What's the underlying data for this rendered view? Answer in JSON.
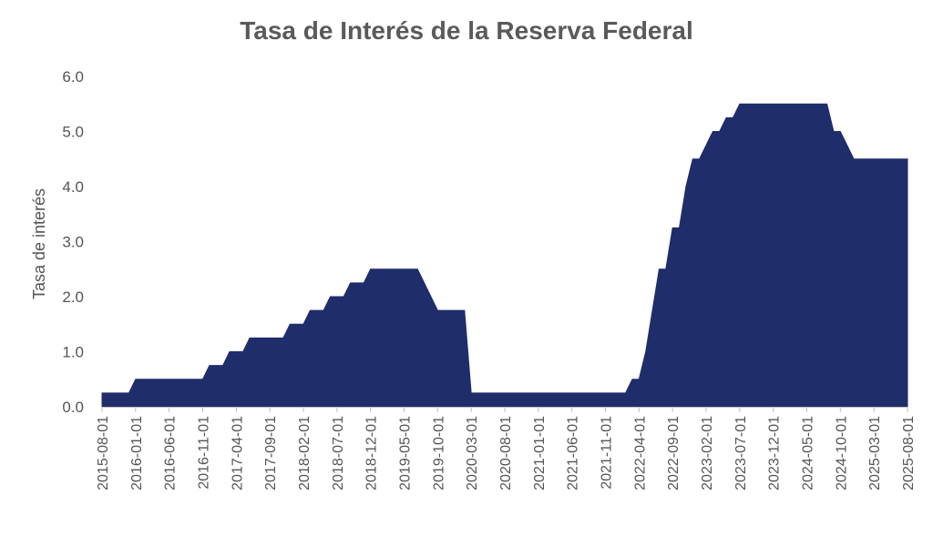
{
  "chart_data": {
    "type": "area",
    "title": "Tasa de Interés de la Reserva Federal",
    "xlabel": "",
    "ylabel": "Tasa de interés",
    "ylim": [
      0,
      6
    ],
    "yticks": [
      "0.0",
      "1.0",
      "2.0",
      "3.0",
      "4.0",
      "5.0",
      "6.0"
    ],
    "xtick_labels": [
      "2015-08-01",
      "2016-01-01",
      "2016-06-01",
      "2016-11-01",
      "2017-04-01",
      "2017-09-01",
      "2018-02-01",
      "2018-07-01",
      "2018-12-01",
      "2019-05-01",
      "2019-10-01",
      "2020-03-01",
      "2020-08-01",
      "2021-01-01",
      "2021-06-01",
      "2021-11-01",
      "2022-04-01",
      "2022-09-01",
      "2023-02-01",
      "2023-07-01",
      "2023-12-01",
      "2024-05-01",
      "2024-10-01",
      "2025-03-01",
      "2025-08-01"
    ],
    "grid": false,
    "legend": "none",
    "fill_color": "#1f2d6b",
    "series": [
      {
        "x": [
          "2015-08-01",
          "2015-12-01",
          "2016-01-01",
          "2016-11-01",
          "2016-12-01",
          "2017-02-01",
          "2017-03-01",
          "2017-05-01",
          "2017-06-01",
          "2017-11-01",
          "2017-12-01",
          "2018-02-01",
          "2018-03-01",
          "2018-05-01",
          "2018-06-01",
          "2018-08-01",
          "2018-09-01",
          "2018-11-01",
          "2018-12-01",
          "2019-06-01",
          "2019-07-01",
          "2019-08-01",
          "2019-09-01",
          "2019-10-01",
          "2019-11-01",
          "2020-02-01",
          "2020-03-01",
          "2022-02-01",
          "2022-03-01",
          "2022-04-01",
          "2022-05-01",
          "2022-06-01",
          "2022-07-01",
          "2022-08-01",
          "2022-09-01",
          "2022-10-01",
          "2022-11-01",
          "2022-12-01",
          "2023-01-01",
          "2023-02-01",
          "2023-03-01",
          "2023-04-01",
          "2023-05-01",
          "2023-06-01",
          "2023-07-01",
          "2024-08-01",
          "2024-09-01",
          "2024-10-01",
          "2024-11-01",
          "2024-12-01",
          "2025-08-01"
        ],
        "values": [
          0.25,
          0.25,
          0.5,
          0.5,
          0.75,
          0.75,
          1.0,
          1.0,
          1.25,
          1.25,
          1.5,
          1.5,
          1.75,
          1.75,
          2.0,
          2.0,
          2.25,
          2.25,
          2.5,
          2.5,
          2.5,
          2.25,
          2.0,
          1.75,
          1.75,
          1.75,
          0.25,
          0.25,
          0.5,
          0.5,
          1.0,
          1.75,
          2.5,
          2.5,
          3.25,
          3.25,
          4.0,
          4.5,
          4.5,
          4.75,
          5.0,
          5.0,
          5.25,
          5.25,
          5.5,
          5.5,
          5.0,
          5.0,
          4.75,
          4.5,
          4.5
        ]
      }
    ]
  }
}
